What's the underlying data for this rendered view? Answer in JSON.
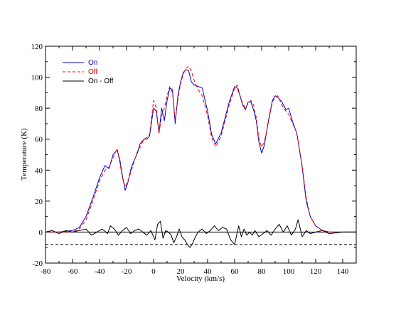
{
  "chart_data": {
    "type": "line",
    "xlabel": "Velocity (km/s)",
    "ylabel": "Temperature (K)",
    "xlim": [
      -80,
      150
    ],
    "ylim": [
      -20,
      120
    ],
    "x_ticks": [
      -80,
      -60,
      -40,
      -20,
      0,
      20,
      40,
      60,
      80,
      100,
      120,
      140
    ],
    "y_ticks": [
      -20,
      0,
      20,
      40,
      60,
      80,
      100,
      120
    ],
    "legend_position": "top-left",
    "colors": {
      "on": "#0000cc",
      "off": "#ee0000",
      "diff": "#000000"
    },
    "series": [
      {
        "name": "On",
        "style": "solid",
        "x": [
          -80,
          -70,
          -60,
          -55,
          -50,
          -45,
          -40,
          -36,
          -33,
          -30,
          -27,
          -25,
          -23,
          -21,
          -19,
          -17,
          -15,
          -12,
          -10,
          -7,
          -5,
          -3,
          0,
          2,
          4,
          6,
          8,
          10,
          12,
          14,
          16,
          18,
          20,
          22,
          24,
          26,
          28,
          30,
          33,
          36,
          40,
          43,
          46,
          50,
          53,
          56,
          60,
          62,
          64,
          66,
          68,
          70,
          72,
          74,
          76,
          78,
          80,
          82,
          85,
          88,
          90,
          92,
          95,
          98,
          100,
          103,
          106,
          110,
          113,
          116,
          120,
          125,
          130,
          140,
          150
        ],
        "values": [
          0,
          0,
          1,
          3,
          10,
          22,
          35,
          43,
          41,
          50,
          53,
          47,
          36,
          27,
          32,
          40,
          45,
          51,
          57,
          60,
          60,
          62,
          80,
          78,
          64,
          80,
          72,
          85,
          93,
          92,
          70,
          88,
          97,
          103,
          105,
          104,
          97,
          95,
          94,
          93,
          78,
          63,
          57,
          64,
          74,
          84,
          94,
          93,
          88,
          82,
          79,
          84,
          84,
          79,
          72,
          58,
          51,
          56,
          72,
          85,
          88,
          87,
          84,
          79,
          80,
          71,
          64,
          42,
          20,
          10,
          4,
          1,
          0,
          0,
          0
        ]
      },
      {
        "name": "Off",
        "style": "dashed",
        "x": [
          -80,
          -70,
          -60,
          -55,
          -50,
          -45,
          -40,
          -36,
          -33,
          -30,
          -27,
          -25,
          -23,
          -21,
          -19,
          -17,
          -15,
          -12,
          -10,
          -7,
          -5,
          -3,
          0,
          2,
          4,
          6,
          8,
          10,
          12,
          14,
          16,
          18,
          20,
          22,
          24,
          26,
          28,
          30,
          33,
          36,
          40,
          43,
          46,
          50,
          53,
          56,
          60,
          62,
          64,
          66,
          68,
          70,
          72,
          74,
          76,
          78,
          80,
          82,
          85,
          88,
          90,
          92,
          95,
          98,
          100,
          103,
          106,
          110,
          113,
          116,
          120,
          125,
          130,
          140,
          150
        ],
        "values": [
          0,
          0,
          0,
          2,
          8,
          20,
          33,
          40,
          42,
          48,
          54,
          45,
          35,
          29,
          33,
          38,
          44,
          52,
          55,
          60,
          61,
          63,
          85,
          80,
          64,
          75,
          80,
          88,
          94,
          90,
          72,
          86,
          96,
          102,
          106,
          107,
          104,
          98,
          92,
          88,
          75,
          61,
          55,
          62,
          72,
          82,
          93,
          95,
          88,
          83,
          80,
          83,
          85,
          82,
          74,
          60,
          55,
          58,
          71,
          84,
          87,
          88,
          82,
          78,
          76,
          70,
          64,
          43,
          22,
          10,
          4,
          1,
          0,
          0,
          0
        ]
      },
      {
        "name": "On - Off",
        "style": "solid",
        "x": [
          -80,
          -75,
          -70,
          -65,
          -60,
          -55,
          -50,
          -46,
          -42,
          -38,
          -34,
          -32,
          -29,
          -26,
          -23,
          -20,
          -17,
          -14,
          -11,
          -8,
          -5,
          -2,
          1,
          3,
          5,
          7,
          9,
          11,
          13,
          15,
          17,
          19,
          21,
          23,
          25,
          27,
          29,
          31,
          33,
          36,
          39,
          42,
          45,
          48,
          51,
          54,
          57,
          60,
          63,
          65,
          67,
          69,
          71,
          73,
          75,
          78,
          81,
          84,
          87,
          90,
          93,
          96,
          99,
          102,
          105,
          107,
          110,
          113,
          116,
          120,
          125,
          130,
          140,
          150
        ],
        "values": [
          0,
          1,
          -1,
          1,
          0,
          1,
          2,
          -2,
          0,
          2,
          -1,
          4,
          2,
          -2,
          1,
          3,
          -1,
          1,
          2,
          0,
          -2,
          1,
          -5,
          5,
          7,
          -4,
          1,
          0,
          -2,
          -7,
          -3,
          2,
          -3,
          -5,
          -8,
          -10,
          -7,
          -3,
          0,
          2,
          -1,
          1,
          4,
          1,
          3,
          2,
          -5,
          -8,
          4,
          -3,
          2,
          -2,
          0,
          -2,
          1,
          -3,
          -1,
          1,
          -2,
          2,
          5,
          0,
          4,
          -2,
          2,
          8,
          -3,
          1,
          -1,
          0,
          1,
          -1,
          0,
          0
        ]
      }
    ],
    "reference_lines": [
      {
        "y": 0,
        "style": "solid"
      },
      {
        "y": -8,
        "style": "dashed"
      }
    ]
  }
}
